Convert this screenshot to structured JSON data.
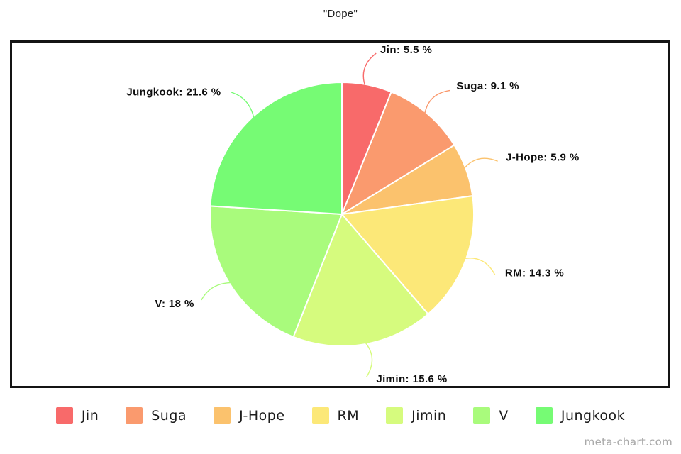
{
  "page": {
    "watermark": "meta-chart.com"
  },
  "chart_data": {
    "type": "pie",
    "title": "\"Dope\"",
    "legend_position": "bottom",
    "start_angle_deg": 0,
    "direction": "clockwise",
    "label_format": "{name}: {value} %",
    "slices": [
      {
        "name": "Jin",
        "value": 5.5,
        "display": "5.5",
        "color": "#f86a6a"
      },
      {
        "name": "Suga",
        "value": 9.1,
        "display": "9.1",
        "color": "#fa9a6e"
      },
      {
        "name": "J-Hope",
        "value": 5.9,
        "display": "5.9",
        "color": "#fbc26d"
      },
      {
        "name": "RM",
        "value": 14.3,
        "display": "14.3",
        "color": "#fce878"
      },
      {
        "name": "Jimin",
        "value": 15.6,
        "display": "15.6",
        "color": "#d6fb7e"
      },
      {
        "name": "V",
        "value": 18,
        "display": "18",
        "color": "#a9fb7c"
      },
      {
        "name": "Jungkook",
        "value": 21.6,
        "display": "21.6",
        "color": "#76fb74"
      }
    ]
  }
}
